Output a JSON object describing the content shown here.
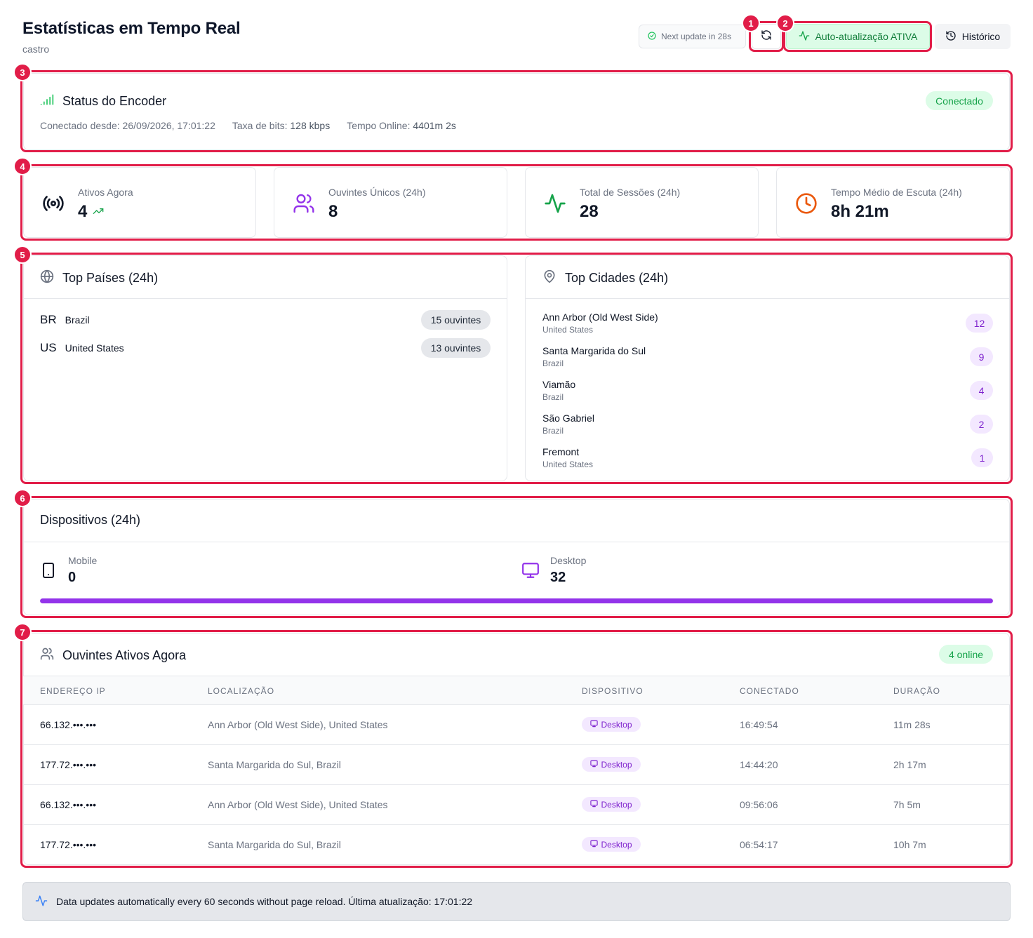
{
  "header": {
    "title": "Estatísticas em Tempo Real",
    "subtitle": "castro",
    "next_update": "Next update in 28s",
    "auto_label": "Auto-atualização ATIVA",
    "history_label": "Histórico"
  },
  "markers": [
    "1",
    "2",
    "3",
    "4",
    "5",
    "6",
    "7"
  ],
  "encoder": {
    "title": "Status do Encoder",
    "status": "Conectado",
    "since_label": "Conectado desde:",
    "since_value": "26/09/2026, 17:01:22",
    "bitrate_label": "Taxa de bits:",
    "bitrate_value": "128 kbps",
    "online_label": "Tempo Online:",
    "online_value": "4401m 2s"
  },
  "stats": [
    {
      "label": "Ativos Agora",
      "value": "4",
      "icon": "radio-icon"
    },
    {
      "label": "Ouvintes Únicos (24h)",
      "value": "8",
      "icon": "users-icon"
    },
    {
      "label": "Total de Sessões (24h)",
      "value": "28",
      "icon": "activity-icon"
    },
    {
      "label": "Tempo Médio de Escuta (24h)",
      "value": "8h 21m",
      "icon": "clock-icon"
    }
  ],
  "countries": {
    "title": "Top Países (24h)",
    "items": [
      {
        "code": "BR",
        "name": "Brazil",
        "count": "15 ouvintes"
      },
      {
        "code": "US",
        "name": "United States",
        "count": "13 ouvintes"
      }
    ]
  },
  "cities": {
    "title": "Top Cidades (24h)",
    "items": [
      {
        "name": "Ann Arbor (Old West Side)",
        "country": "United States",
        "count": "12"
      },
      {
        "name": "Santa Margarida do Sul",
        "country": "Brazil",
        "count": "9"
      },
      {
        "name": "Viamão",
        "country": "Brazil",
        "count": "4"
      },
      {
        "name": "São Gabriel",
        "country": "Brazil",
        "count": "2"
      },
      {
        "name": "Fremont",
        "country": "United States",
        "count": "1"
      }
    ]
  },
  "devices": {
    "title": "Dispositivos (24h)",
    "mobile_label": "Mobile",
    "mobile_value": "0",
    "desktop_label": "Desktop",
    "desktop_value": "32",
    "desktop_share": 1.0
  },
  "listeners": {
    "title": "Ouvintes Ativos Agora",
    "online": "4 online",
    "columns": [
      "ENDEREÇO IP",
      "LOCALIZAÇÃO",
      "DISPOSITIVO",
      "CONECTADO",
      "DURAÇÃO"
    ],
    "rows": [
      {
        "ip": "66.132.•••.•••",
        "location": "Ann Arbor (Old West Side), United States",
        "device": "Desktop",
        "connected": "16:49:54",
        "duration": "11m 28s"
      },
      {
        "ip": "177.72.•••.•••",
        "location": "Santa Margarida do Sul, Brazil",
        "device": "Desktop",
        "connected": "14:44:20",
        "duration": "2h 17m"
      },
      {
        "ip": "66.132.•••.•••",
        "location": "Ann Arbor (Old West Side), United States",
        "device": "Desktop",
        "connected": "09:56:06",
        "duration": "7h 5m"
      },
      {
        "ip": "177.72.•••.•••",
        "location": "Santa Margarida do Sul, Brazil",
        "device": "Desktop",
        "connected": "06:54:17",
        "duration": "10h 7m"
      }
    ]
  },
  "footer": {
    "text": "Data updates automatically every 60 seconds without page reload. Última atualização: 17:01:22"
  },
  "colors": {
    "accent_red": "#e11d48",
    "green": "#16a34a",
    "purple": "#9333ea",
    "orange": "#ea580c"
  }
}
